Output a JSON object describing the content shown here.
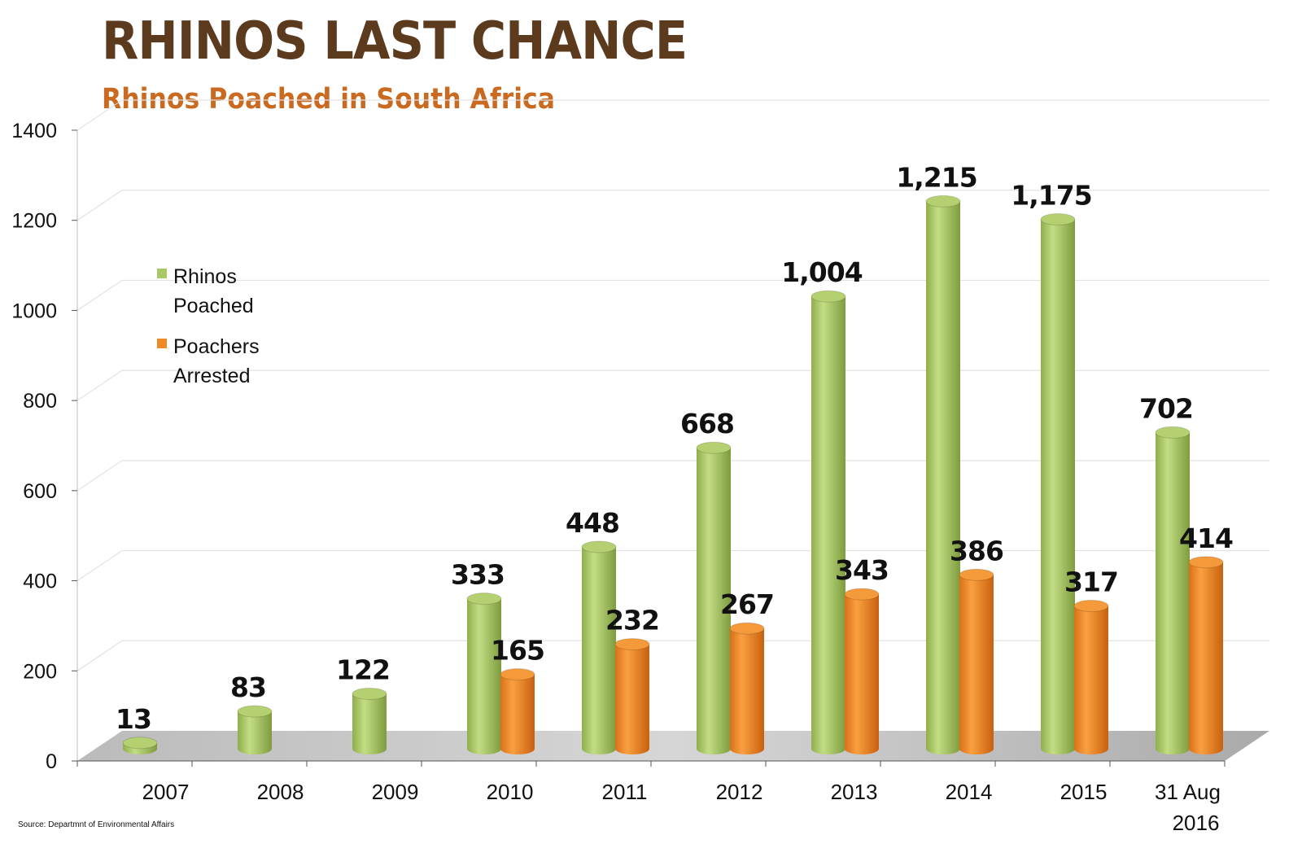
{
  "title": "RHINOS LAST CHANCE",
  "source": "Source: Departmnt of Environmental Affairs",
  "colors": {
    "poached": "#a8c766",
    "arrested": "#f08a24",
    "title": "#5b3a1e",
    "subtitle": "#c96a20"
  },
  "chart_data": {
    "type": "bar",
    "title": "Rhinos Poached in South Africa",
    "xlabel": "",
    "ylabel": "",
    "ylim": [
      0,
      1400
    ],
    "yticks": [
      "0",
      "200",
      "400",
      "600",
      "800",
      "1000",
      "1200",
      "1400"
    ],
    "categories": [
      "2007",
      "2008",
      "2009",
      "2010",
      "2011",
      "2012",
      "2013",
      "2014",
      "2015",
      "31 Aug\n2016"
    ],
    "series": [
      {
        "name": "Rhinos Poached",
        "values": [
          13,
          83,
          122,
          333,
          448,
          668,
          1004,
          1215,
          1175,
          702
        ],
        "labels": [
          "13",
          "83",
          "122",
          "333",
          "448",
          "668",
          "1,004",
          "1,215",
          "1,175",
          "702"
        ]
      },
      {
        "name": "Poachers Arrested",
        "values": [
          null,
          null,
          null,
          165,
          232,
          267,
          343,
          386,
          317,
          414
        ],
        "labels": [
          null,
          null,
          null,
          "165",
          "232",
          "267",
          "343",
          "386",
          "317",
          "414"
        ]
      }
    ],
    "legend": "left",
    "grid": true
  }
}
